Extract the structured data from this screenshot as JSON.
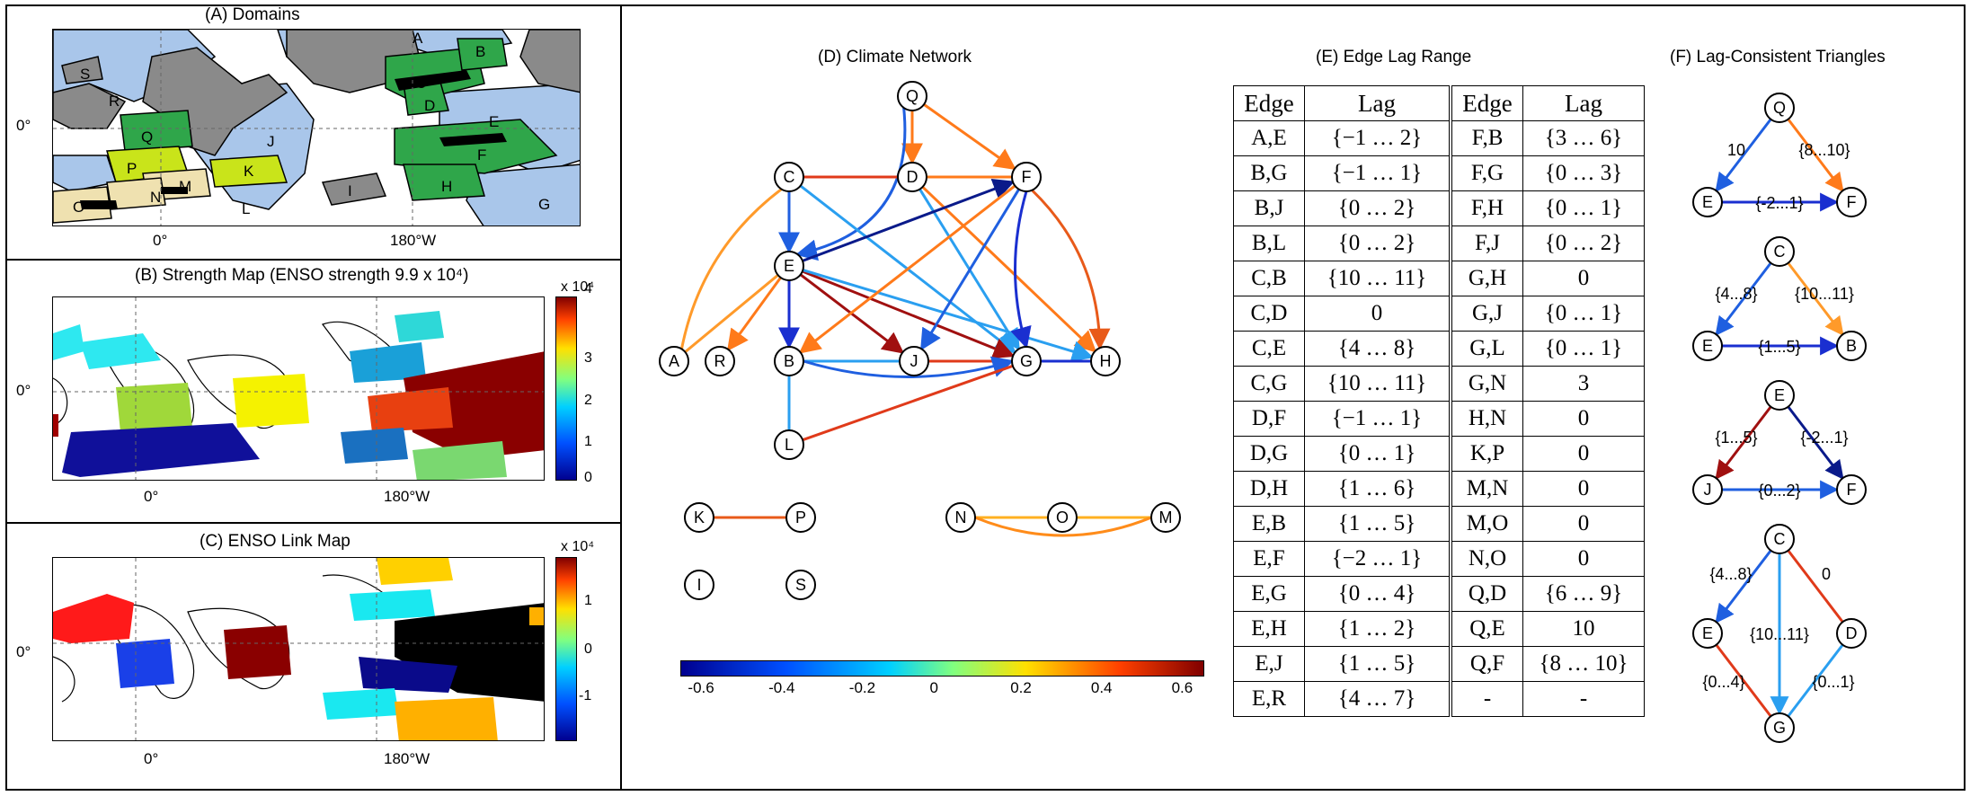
{
  "panelA": {
    "title": "(A) Domains",
    "y_tick": "0°",
    "x_ticks": [
      "0°",
      "180°W"
    ],
    "domain_labels": [
      "A",
      "B",
      "C",
      "D",
      "E",
      "F",
      "G",
      "H",
      "I",
      "J",
      "K",
      "L",
      "M",
      "N",
      "O",
      "P",
      "Q",
      "R",
      "S"
    ]
  },
  "panelB": {
    "title": "(B) Strength Map (ENSO strength 9.9 x 10⁴)",
    "y_tick": "0°",
    "x_ticks": [
      "0°",
      "180°W"
    ],
    "colorbar_exponent": "x 10⁴",
    "colorbar_ticks": [
      "4",
      "3",
      "2",
      "1",
      "0"
    ]
  },
  "panelC": {
    "title": "(C) ENSO Link Map",
    "y_tick": "0°",
    "x_ticks": [
      "0°",
      "180°W"
    ],
    "colorbar_exponent": "x 10⁴",
    "colorbar_ticks": [
      "1",
      "0",
      "-1"
    ]
  },
  "panelD": {
    "title": "(D) Climate Network",
    "nodes": [
      "Q",
      "C",
      "D",
      "F",
      "E",
      "A",
      "R",
      "B",
      "J",
      "G",
      "H",
      "L",
      "K",
      "P",
      "N",
      "O",
      "M",
      "I",
      "S"
    ],
    "colorbar_ticks": [
      "-0.6",
      "-0.4",
      "-0.2",
      "0",
      "0.2",
      "0.4",
      "0.6"
    ],
    "edges": [
      {
        "from": "Q",
        "to": "D",
        "color": "#ff7a1a"
      },
      {
        "from": "Q",
        "to": "F",
        "color": "#ff7a1a"
      },
      {
        "from": "Q",
        "to": "E",
        "color": "#1f5fe0"
      },
      {
        "from": "C",
        "to": "D",
        "color": "#e03a1a"
      },
      {
        "from": "D",
        "to": "F",
        "color": "#ff7a1a"
      },
      {
        "from": "C",
        "to": "E",
        "color": "#1f5fe0"
      },
      {
        "from": "C",
        "to": "G",
        "color": "#2a9ff0"
      },
      {
        "from": "C",
        "to": "A",
        "color": "#ff9a2a"
      },
      {
        "from": "D",
        "to": "G",
        "color": "#2a9ff0"
      },
      {
        "from": "D",
        "to": "H",
        "color": "#ff7a1a"
      },
      {
        "from": "E",
        "to": "B",
        "color": "#1a2fd0"
      },
      {
        "from": "E",
        "to": "J",
        "color": "#a01010"
      },
      {
        "from": "E",
        "to": "G",
        "color": "#a01010"
      },
      {
        "from": "E",
        "to": "H",
        "color": "#2a9ff0"
      },
      {
        "from": "E",
        "to": "A",
        "color": "#ff9a2a"
      },
      {
        "from": "E",
        "to": "R",
        "color": "#ff7a1a"
      },
      {
        "from": "E",
        "to": "F",
        "color": "#0a1a8a"
      },
      {
        "from": "F",
        "to": "B",
        "color": "#ff7a1a"
      },
      {
        "from": "F",
        "to": "J",
        "color": "#1f5fe0"
      },
      {
        "from": "F",
        "to": "G",
        "color": "#1a2fd0"
      },
      {
        "from": "F",
        "to": "H",
        "color": "#e85a1a"
      },
      {
        "from": "B",
        "to": "J",
        "color": "#2a9ff0"
      },
      {
        "from": "J",
        "to": "G",
        "color": "#e03a1a"
      },
      {
        "from": "B",
        "to": "G",
        "color": "#1f5fe0"
      },
      {
        "from": "G",
        "to": "H",
        "color": "#1a2fd0"
      },
      {
        "from": "B",
        "to": "L",
        "color": "#2a9ff0"
      },
      {
        "from": "G",
        "to": "L",
        "color": "#e03a1a"
      },
      {
        "from": "K",
        "to": "P",
        "color": "#e85a1a"
      },
      {
        "from": "N",
        "to": "O",
        "color": "#ffb020"
      },
      {
        "from": "O",
        "to": "M",
        "color": "#ffb020"
      },
      {
        "from": "N",
        "to": "M",
        "color": "#ff8c1a"
      }
    ]
  },
  "panelE": {
    "title": "(E)  Edge Lag Range",
    "headers": [
      "Edge",
      "Lag",
      "Edge",
      "Lag"
    ],
    "rows": [
      [
        "A,E",
        "{−1 … 2}",
        "F,B",
        "{3 … 6}"
      ],
      [
        "B,G",
        "{−1 … 1}",
        "F,G",
        "{0 … 3}"
      ],
      [
        "B,J",
        "{0 … 2}",
        "F,H",
        "{0 … 1}"
      ],
      [
        "B,L",
        "{0 … 2}",
        "F,J",
        "{0 … 2}"
      ],
      [
        "C,B",
        "{10 … 11}",
        "G,H",
        "0"
      ],
      [
        "C,D",
        "0",
        "G,J",
        "{0 … 1}"
      ],
      [
        "C,E",
        "{4 … 8}",
        "G,L",
        "{0 … 1}"
      ],
      [
        "C,G",
        "{10 … 11}",
        "G,N",
        "3"
      ],
      [
        "D,F",
        "{−1 … 1}",
        "H,N",
        "0"
      ],
      [
        "D,G",
        "{0 … 1}",
        "K,P",
        "0"
      ],
      [
        "D,H",
        "{1 … 6}",
        "M,N",
        "0"
      ],
      [
        "E,B",
        "{1 … 5}",
        "M,O",
        "0"
      ],
      [
        "E,F",
        "{−2 … 1}",
        "N,O",
        "0"
      ],
      [
        "E,G",
        "{0 … 4}",
        "Q,D",
        "{6 … 9}"
      ],
      [
        "E,H",
        "{1 … 2}",
        "Q,E",
        "10"
      ],
      [
        "E,J",
        "{1 … 5}",
        "Q,F",
        "{8 … 10}"
      ],
      [
        "E,R",
        "{4 … 7}",
        "-",
        "-"
      ]
    ]
  },
  "panelF": {
    "title": "(F)  Lag-Consistent Triangles",
    "triangles": [
      {
        "top": "Q",
        "left": "E",
        "right": "F",
        "l_top": "10",
        "r_top": "{8...10}",
        "base": "{-2...1}"
      },
      {
        "top": "C",
        "left": "E",
        "right": "B",
        "l_top": "{4...8}",
        "r_top": "{10...11}",
        "base": "{1...5}"
      },
      {
        "top": "E",
        "left": "J",
        "right": "F",
        "l_top": "{1...5}",
        "r_top": "{-2...1}",
        "base": "{0...2}"
      }
    ],
    "diamond": {
      "nodes": [
        "C",
        "E",
        "D",
        "G"
      ],
      "labels": [
        "{4...8}",
        "0",
        "{10...11}",
        "{0...4}",
        "{0...1}"
      ]
    }
  }
}
